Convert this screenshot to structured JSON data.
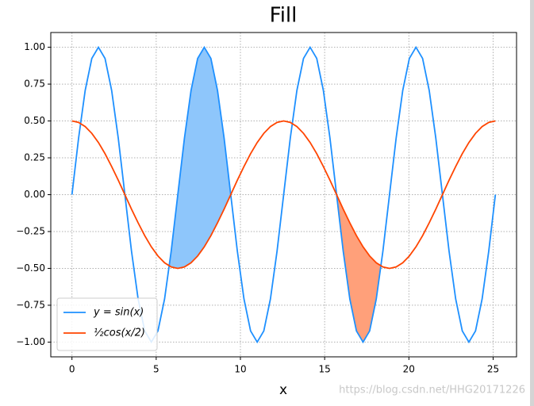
{
  "chart_data": {
    "type": "line",
    "title": "Fill",
    "xlabel": "x",
    "watermark": "https://blog.csdn.net/HHG20171226",
    "x": [
      0,
      0.393,
      0.785,
      1.178,
      1.571,
      1.963,
      2.356,
      2.749,
      3.142,
      3.534,
      3.927,
      4.32,
      4.712,
      5.105,
      5.498,
      5.89,
      6.283,
      6.676,
      7.069,
      7.461,
      7.854,
      8.247,
      8.639,
      9.032,
      9.425,
      9.817,
      10.21,
      10.603,
      10.996,
      11.388,
      11.781,
      12.174,
      12.566,
      12.959,
      13.352,
      13.744,
      14.137,
      14.53,
      14.923,
      15.315,
      15.708,
      16.101,
      16.493,
      16.886,
      17.279,
      17.671,
      18.064,
      18.457,
      18.85,
      19.242,
      19.635,
      20.028,
      20.42,
      20.813,
      21.206,
      21.598,
      21.991,
      22.384,
      22.777,
      23.169,
      23.562,
      23.955,
      24.347,
      24.74,
      25.133
    ],
    "series": [
      {
        "name": "y = sin(x)",
        "color": "#1e90ff",
        "values": [
          0,
          0.383,
          0.707,
          0.924,
          1,
          0.924,
          0.707,
          0.383,
          0,
          -0.383,
          -0.707,
          -0.924,
          -1,
          -0.924,
          -0.707,
          -0.383,
          0,
          0.383,
          0.707,
          0.924,
          1,
          0.924,
          0.707,
          0.383,
          0,
          -0.383,
          -0.707,
          -0.924,
          -1,
          -0.924,
          -0.707,
          -0.383,
          0,
          0.383,
          0.707,
          0.924,
          1,
          0.924,
          0.707,
          0.383,
          0,
          -0.383,
          -0.707,
          -0.924,
          -1,
          -0.924,
          -0.707,
          -0.383,
          0,
          0.383,
          0.707,
          0.924,
          1,
          0.924,
          0.707,
          0.383,
          0,
          -0.383,
          -0.707,
          -0.924,
          -1,
          -0.924,
          -0.707,
          -0.383,
          0
        ]
      },
      {
        "name": "½cos(x/2)",
        "color": "#ff4500",
        "values": [
          0.5,
          0.49,
          0.462,
          0.416,
          0.354,
          0.278,
          0.191,
          0.098,
          0,
          -0.098,
          -0.191,
          -0.278,
          -0.354,
          -0.416,
          -0.462,
          -0.49,
          -0.5,
          -0.49,
          -0.462,
          -0.416,
          -0.354,
          -0.278,
          -0.191,
          -0.098,
          0,
          0.098,
          0.191,
          0.278,
          0.354,
          0.416,
          0.462,
          0.49,
          0.5,
          0.49,
          0.462,
          0.416,
          0.354,
          0.278,
          0.191,
          0.098,
          0,
          -0.098,
          -0.191,
          -0.278,
          -0.354,
          -0.416,
          -0.462,
          -0.49,
          -0.5,
          -0.49,
          -0.462,
          -0.416,
          -0.354,
          -0.278,
          -0.191,
          -0.098,
          0,
          0.098,
          0.191,
          0.278,
          0.354,
          0.416,
          0.462,
          0.49,
          0.5
        ]
      }
    ],
    "fills": [
      {
        "color": "#8ec6fb",
        "where": "above",
        "xrange": [
          4.712,
          10.996
        ]
      },
      {
        "color": "#ffa07a",
        "where": "below",
        "xrange": [
          14.137,
          20.42
        ]
      }
    ],
    "xlim": [
      -1.257,
      26.39
    ],
    "ylim": [
      -1.1,
      1.1
    ],
    "xticks": [
      0,
      5,
      10,
      15,
      20,
      25
    ],
    "yticks": [
      {
        "value": 1,
        "label": "1.00"
      },
      {
        "value": 0.75,
        "label": "0.75"
      },
      {
        "value": 0.5,
        "label": "0.50"
      },
      {
        "value": 0.25,
        "label": "0.25"
      },
      {
        "value": 0,
        "label": "0.00"
      },
      {
        "value": -0.25,
        "label": "−0.25"
      },
      {
        "value": -0.5,
        "label": "−0.50"
      },
      {
        "value": -0.75,
        "label": "−0.75"
      },
      {
        "value": -1,
        "label": "−1.00"
      }
    ],
    "grid": true,
    "legend": "lower left"
  }
}
